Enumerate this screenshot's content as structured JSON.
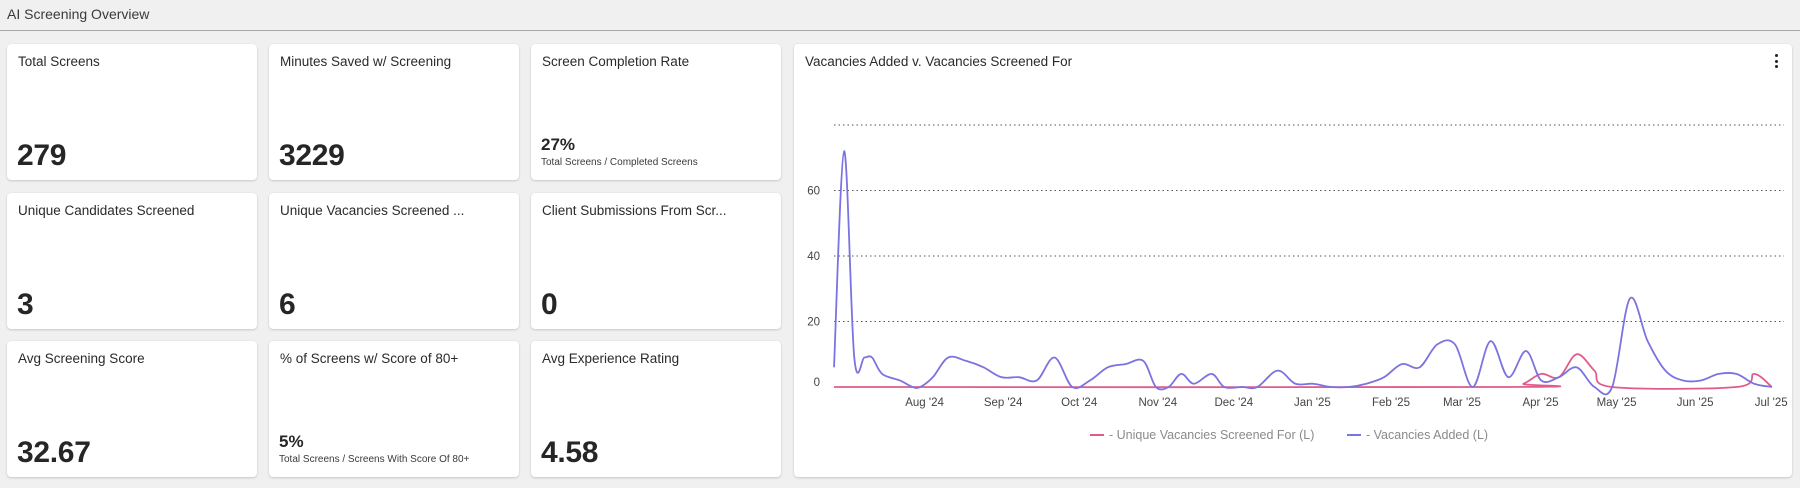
{
  "header": {
    "title": "AI Screening Overview"
  },
  "kpis": {
    "total_screens": {
      "title": "Total Screens",
      "value": "279"
    },
    "minutes_saved": {
      "title": "Minutes Saved w/ Screening",
      "value": "3229"
    },
    "completion_rate": {
      "title": "Screen Completion Rate",
      "value": "27%",
      "caption": "Total Screens / Completed Screens"
    },
    "unique_candidates": {
      "title": "Unique Candidates Screened",
      "value": "3"
    },
    "unique_vacancies": {
      "title": "Unique Vacancies Screened ...",
      "value": "6"
    },
    "client_submissions": {
      "title": "Client Submissions From Scr...",
      "value": "0"
    },
    "avg_score": {
      "title": "Avg Screening Score",
      "value": "32.67"
    },
    "pct_80plus": {
      "title": "% of Screens w/ Score of 80+",
      "value": "5%",
      "caption": "Total Screens / Screens With Score Of 80+"
    },
    "avg_experience": {
      "title": "Avg Experience Rating",
      "value": "4.58"
    }
  },
  "chart_card": {
    "title": "Vacancies Added v. Vacancies Screened For",
    "menu_icon": "kebab-menu-icon"
  },
  "chart_data": {
    "type": "line",
    "title": "Vacancies Added v. Vacancies Screened For",
    "xlabel": "",
    "ylabel": "",
    "x_ticks": [
      "Aug '24",
      "Sep '24",
      "Oct '24",
      "Nov '24",
      "Dec '24",
      "Jan '25",
      "Feb '25",
      "Mar '25",
      "Apr '25",
      "May '25",
      "Jun '25",
      "Jul '25"
    ],
    "y_ticks": [
      0,
      20,
      40,
      60
    ],
    "ylim": [
      0,
      80
    ],
    "grid": "horizontal dotted",
    "legend_position": "bottom",
    "series": [
      {
        "name": "- Vacancies Added (L)",
        "color": "#7b73e0",
        "points": [
          [
            "2024-07-01",
            6
          ],
          [
            "2024-07-05",
            72
          ],
          [
            "2024-07-09",
            9
          ],
          [
            "2024-07-13",
            9
          ],
          [
            "2024-07-16",
            9
          ],
          [
            "2024-07-20",
            4
          ],
          [
            "2024-07-27",
            2
          ],
          [
            "2024-08-01",
            0
          ],
          [
            "2024-08-04",
            0
          ],
          [
            "2024-08-09",
            3
          ],
          [
            "2024-08-15",
            9
          ],
          [
            "2024-08-22",
            8
          ],
          [
            "2024-08-29",
            6
          ],
          [
            "2024-09-05",
            3
          ],
          [
            "2024-09-12",
            3
          ],
          [
            "2024-09-19",
            2
          ],
          [
            "2024-09-26",
            9
          ],
          [
            "2024-10-03",
            0
          ],
          [
            "2024-10-10",
            2
          ],
          [
            "2024-10-17",
            6
          ],
          [
            "2024-10-24",
            7
          ],
          [
            "2024-10-31",
            8
          ],
          [
            "2024-11-05",
            0
          ],
          [
            "2024-11-10",
            0
          ],
          [
            "2024-11-15",
            4
          ],
          [
            "2024-11-20",
            1
          ],
          [
            "2024-11-27",
            4
          ],
          [
            "2024-12-02",
            0
          ],
          [
            "2024-12-09",
            0
          ],
          [
            "2024-12-15",
            0
          ],
          [
            "2024-12-23",
            5
          ],
          [
            "2024-12-30",
            1
          ],
          [
            "2025-01-06",
            1
          ],
          [
            "2025-01-13",
            0
          ],
          [
            "2025-01-20",
            0
          ],
          [
            "2025-01-27",
            1
          ],
          [
            "2025-02-03",
            3
          ],
          [
            "2025-02-10",
            7
          ],
          [
            "2025-02-17",
            6
          ],
          [
            "2025-02-24",
            13
          ],
          [
            "2025-03-03",
            13
          ],
          [
            "2025-03-10",
            0
          ],
          [
            "2025-03-17",
            14
          ],
          [
            "2025-03-24",
            3
          ],
          [
            "2025-03-31",
            11
          ],
          [
            "2025-04-06",
            2
          ],
          [
            "2025-04-13",
            3
          ],
          [
            "2025-04-20",
            6
          ],
          [
            "2025-04-27",
            0
          ],
          [
            "2025-05-04",
            0
          ],
          [
            "2025-05-11",
            27
          ],
          [
            "2025-05-18",
            14
          ],
          [
            "2025-05-25",
            5
          ],
          [
            "2025-06-01",
            2
          ],
          [
            "2025-06-08",
            2
          ],
          [
            "2025-06-15",
            4
          ],
          [
            "2025-06-22",
            4
          ],
          [
            "2025-06-29",
            1
          ],
          [
            "2025-07-06",
            0
          ]
        ]
      },
      {
        "name": "- Unique Vacancies Screened For (L)",
        "color": "#e05c8a",
        "points": [
          [
            "2024-07-01",
            0
          ],
          [
            "2025-03-23",
            0
          ],
          [
            "2025-03-30",
            1
          ],
          [
            "2025-04-06",
            4
          ],
          [
            "2025-04-13",
            3
          ],
          [
            "2025-04-20",
            10
          ],
          [
            "2025-04-27",
            5
          ],
          [
            "2025-05-04",
            0
          ],
          [
            "2025-06-22",
            0
          ],
          [
            "2025-06-29",
            4
          ],
          [
            "2025-07-06",
            0
          ]
        ]
      }
    ]
  }
}
